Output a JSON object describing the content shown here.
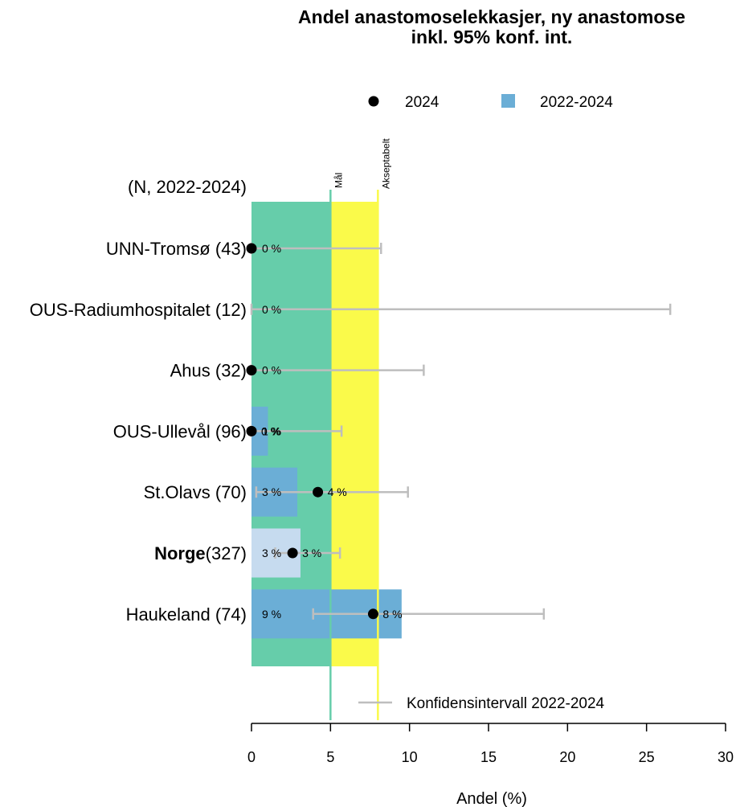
{
  "chart_data": {
    "type": "bar",
    "title_line1": "Andel anastomoselekkasjer, ny anastomose",
    "title_line2": "inkl. 95% konf. int.",
    "n_label": "(N, 2022-2024)",
    "xlabel": "Andel (%)",
    "xlim": [
      0,
      30
    ],
    "xticks": [
      "0",
      "5",
      "10",
      "15",
      "20",
      "25",
      "30"
    ],
    "legend": {
      "point_label": "2024",
      "bar_label": "2022-2024",
      "ci_label": "Konfidensintervall 2022-2024"
    },
    "target_lines": [
      {
        "name": "Mål",
        "value": 5,
        "color": "#66CDAA"
      },
      {
        "name": "Akseptabelt",
        "value": 8,
        "color": "#FAFA4A"
      }
    ],
    "categories": [
      {
        "name": "UNN-Tromsø",
        "n": "(43)",
        "bold": false,
        "bar": 0,
        "bar_label": "0 %",
        "point": 0,
        "point_label": "",
        "ci": [
          0,
          8.2
        ]
      },
      {
        "name": "OUS-Radiumhospitalet",
        "n": "(12)",
        "bold": false,
        "bar": 0,
        "bar_label": "0 %",
        "point": null,
        "point_label": "",
        "ci": [
          0,
          26.5
        ]
      },
      {
        "name": "Ahus",
        "n": "(32)",
        "bold": false,
        "bar": 0,
        "bar_label": "0 %",
        "point": 0,
        "point_label": "",
        "ci": [
          0,
          10.9
        ]
      },
      {
        "name": "OUS-Ullevål",
        "n": "(96)",
        "bold": false,
        "bar": 1.04,
        "bar_label": "1 %",
        "point": 0,
        "point_label": "0 %",
        "ci": [
          0,
          5.7
        ]
      },
      {
        "name": "St.Olavs",
        "n": "(70)",
        "bold": false,
        "bar": 2.9,
        "bar_label": "3 %",
        "point": 4.2,
        "point_label": "4 %",
        "ci": [
          0.3,
          9.9
        ]
      },
      {
        "name": "Norge",
        "n": "(327)",
        "bold": true,
        "bar": 3.1,
        "bar_label": "3 %",
        "point": 2.6,
        "point_label": "3 %",
        "ci": [
          1.5,
          5.6
        ]
      },
      {
        "name": "Haukeland",
        "n": "(74)",
        "bold": false,
        "bar": 9.5,
        "bar_label": "9 %",
        "point": 7.7,
        "point_label": "8 %",
        "ci": [
          3.9,
          18.5
        ]
      }
    ],
    "colors": {
      "bar": "#6BAED6",
      "bar_highlight": "#C6DBEF",
      "ci": "#BEBEBE",
      "point": "#000000",
      "goal_zone": "#66CDAA",
      "acceptable_zone": "#FAFA4A"
    }
  }
}
